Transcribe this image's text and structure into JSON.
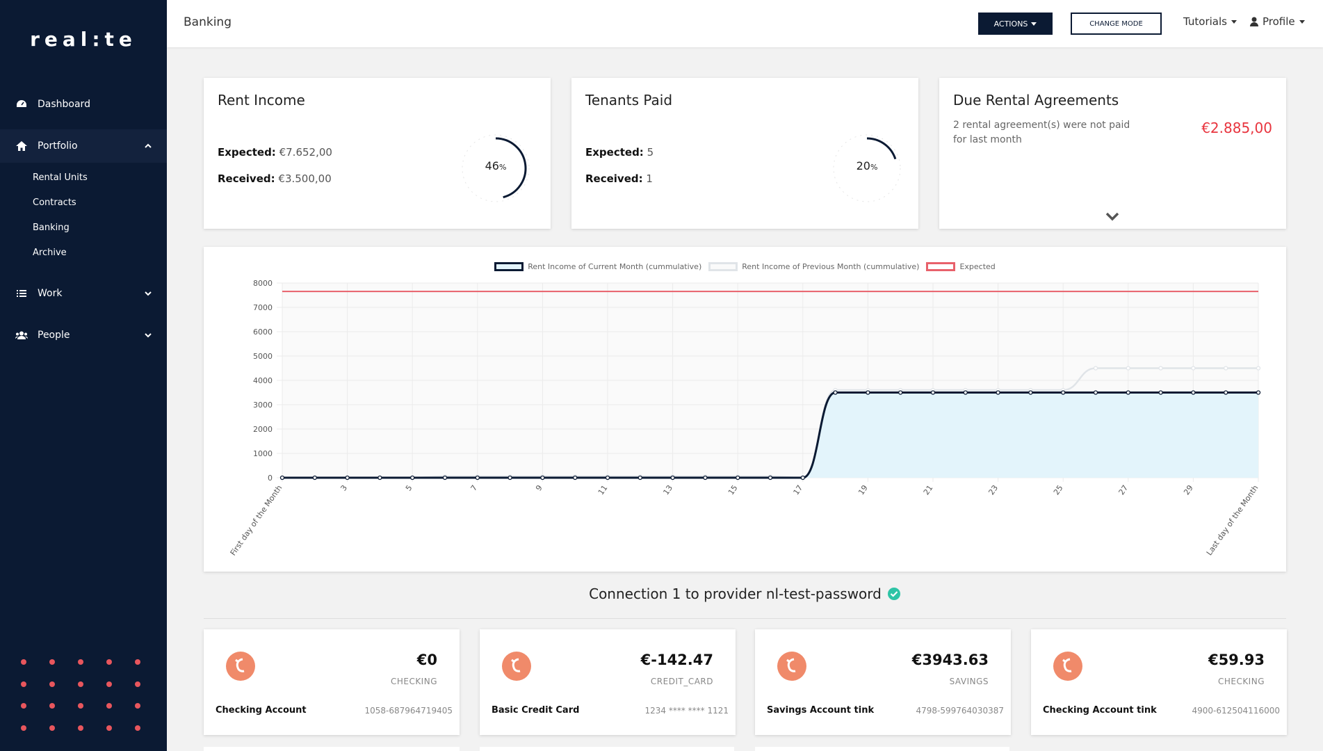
{
  "sidebar": {
    "logo": "real:te",
    "items": [
      {
        "label": "Dashboard"
      },
      {
        "label": "Portfolio",
        "sub": [
          "Rental Units",
          "Contracts",
          "Banking",
          "Archive"
        ]
      },
      {
        "label": "Work"
      },
      {
        "label": "People"
      }
    ]
  },
  "header": {
    "title": "Banking",
    "actions_label": "ACTIONS",
    "change_mode_label": "CHANGE MODE",
    "tutorials_label": "Tutorials",
    "profile_label": "Profile"
  },
  "cards": {
    "rent_income": {
      "title": "Rent Income",
      "expected_label": "Expected:",
      "expected_value": "€7.652,00",
      "received_label": "Received:",
      "received_value": "€3.500,00",
      "percent": "46",
      "percent_fraction": 0.46,
      "percent_sign": "%"
    },
    "tenants_paid": {
      "title": "Tenants Paid",
      "expected_label": "Expected:",
      "expected_value": "5",
      "received_label": "Received:",
      "received_value": "1",
      "percent": "20",
      "percent_fraction": 0.2,
      "percent_sign": "%"
    },
    "due_rental": {
      "title": "Due Rental Agreements",
      "text": "2 rental agreement(s) were not paid for last month",
      "amount": "€2.885,00"
    }
  },
  "chart_data": {
    "type": "line",
    "legend": [
      "Rent Income of Current Month (cummulative)",
      "Rent Income of Previous Month (cummulative)",
      "Expected"
    ],
    "x_labels": [
      "First day of the Month",
      "3",
      "5",
      "7",
      "9",
      "11",
      "13",
      "15",
      "17",
      "19",
      "21",
      "23",
      "25",
      "27",
      "29",
      "Last day of the Month"
    ],
    "days": [
      1,
      2,
      3,
      4,
      5,
      6,
      7,
      8,
      9,
      10,
      11,
      12,
      13,
      14,
      15,
      16,
      17,
      18,
      19,
      20,
      21,
      22,
      23,
      24,
      25,
      26,
      27,
      28,
      29,
      30,
      31
    ],
    "y_ticks": [
      "0",
      "1000",
      "2000",
      "3000",
      "4000",
      "5000",
      "6000",
      "7000",
      "8000"
    ],
    "ylim": [
      0,
      8000
    ],
    "series": [
      {
        "name": "Rent Income of Current Month (cummulative)",
        "values": [
          0,
          0,
          0,
          0,
          0,
          0,
          0,
          0,
          0,
          0,
          0,
          0,
          0,
          0,
          0,
          0,
          0,
          3500,
          3500,
          3500,
          3500,
          3500,
          3500,
          3500,
          3500,
          3500,
          3500,
          3500,
          3500,
          3500,
          3500
        ]
      },
      {
        "name": "Rent Income of Previous Month (cummulative)",
        "values": [
          0,
          0,
          0,
          0,
          0,
          50,
          50,
          50,
          50,
          50,
          50,
          50,
          50,
          50,
          50,
          50,
          0,
          3600,
          3600,
          3600,
          3600,
          3600,
          3600,
          3600,
          3600,
          4500,
          4500,
          4500,
          4500,
          4500,
          4500
        ]
      },
      {
        "name": "Expected",
        "values": [
          7652,
          7652,
          7652,
          7652,
          7652,
          7652,
          7652,
          7652,
          7652,
          7652,
          7652,
          7652,
          7652,
          7652,
          7652,
          7652,
          7652,
          7652,
          7652,
          7652,
          7652,
          7652,
          7652,
          7652,
          7652,
          7652,
          7652,
          7652,
          7652,
          7652,
          7652
        ]
      }
    ],
    "colors": {
      "current": "#0b1a33",
      "current_fill": "#e3f4fb",
      "previous": "#e0e4e8",
      "expected": "#e8616b"
    },
    "grid": true,
    "legend_position": "top"
  },
  "connection": {
    "title": "Connection 1 to provider nl-test-password"
  },
  "accounts": [
    {
      "amount": "€0",
      "type": "CHECKING",
      "name": "Checking Account",
      "number": "1058-687964719405"
    },
    {
      "amount": "€-142.47",
      "type": "CREDIT_CARD",
      "name": "Basic Credit Card",
      "number": "1234 **** **** 1121"
    },
    {
      "amount": "€3943.63",
      "type": "SAVINGS",
      "name": "Savings Account tink",
      "number": "4798-599764030387"
    },
    {
      "amount": "€59.93",
      "type": "CHECKING",
      "name": "Checking Account tink",
      "number": "4900-612504116000"
    }
  ],
  "icons": {
    "dashboard": "dashboard-icon",
    "portfolio": "home-icon",
    "work": "list-icon",
    "people": "users-icon",
    "profile": "user-icon",
    "verified": "check-circle-icon",
    "account": "bank-icon"
  }
}
